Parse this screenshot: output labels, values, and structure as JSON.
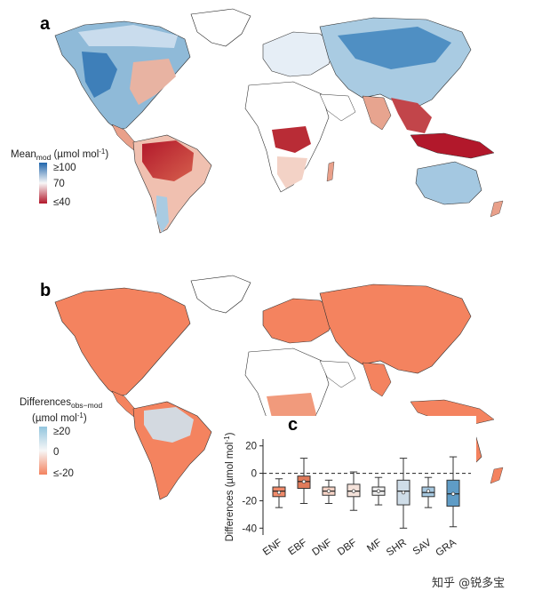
{
  "panel_a": {
    "letter": "a",
    "legend": {
      "title_main": "Mean",
      "title_sub": "mod",
      "title_unit": "(µmol mol",
      "title_exp": "-1",
      "title_close": ")",
      "ticks": [
        "≥100",
        "70",
        "≤40"
      ],
      "colors": [
        "#2166ac",
        "#f7f7f7",
        "#b2182b"
      ]
    }
  },
  "panel_b": {
    "letter": "b",
    "legend": {
      "title_main": "Differences",
      "title_sub": "obs−mod",
      "unit_line": "(µmol mol",
      "unit_exp": "-1",
      "unit_close": ")",
      "ticks": [
        "≥20",
        "0",
        "≤-20"
      ],
      "colors": [
        "#92c5de",
        "#f7f7f7",
        "#f4835f"
      ]
    }
  },
  "watermark": "知乎 @锐多宝",
  "chart_data": {
    "type": "boxplot",
    "panel": "c",
    "title": "",
    "ylabel": "Differences (µmol mol",
    "ylabel_exp": "-1",
    "ylabel_close": ")",
    "ylim": [
      -45,
      25
    ],
    "yticks": [
      20,
      0,
      -20,
      -40
    ],
    "reference_line": 0,
    "categories": [
      "ENF",
      "EBF",
      "DNF",
      "DBF",
      "MF",
      "SHR",
      "SAV",
      "GRA"
    ],
    "colors": [
      "#f08a6a",
      "#e07a5a",
      "#f6d3c6",
      "#f4e2da",
      "#eeeeee",
      "#cfdde8",
      "#a6c8e0",
      "#5f9cc6"
    ],
    "boxes": [
      {
        "name": "ENF",
        "whisker_low": -25,
        "q1": -17,
        "median": -13,
        "q3": -10,
        "whisker_high": -4,
        "mean": -14
      },
      {
        "name": "EBF",
        "whisker_low": -22,
        "q1": -11,
        "median": -6,
        "q3": -2,
        "whisker_high": 11,
        "mean": -6
      },
      {
        "name": "DNF",
        "whisker_low": -22,
        "q1": -16,
        "median": -13,
        "q3": -10,
        "whisker_high": -5,
        "mean": -13
      },
      {
        "name": "DBF",
        "whisker_low": -27,
        "q1": -17,
        "median": -13,
        "q3": -8,
        "whisker_high": 1,
        "mean": -13
      },
      {
        "name": "MF",
        "whisker_low": -23,
        "q1": -16,
        "median": -13,
        "q3": -10,
        "whisker_high": -3,
        "mean": -13
      },
      {
        "name": "SHR",
        "whisker_low": -40,
        "q1": -23,
        "median": -13,
        "q3": -5,
        "whisker_high": 11,
        "mean": -14
      },
      {
        "name": "SAV",
        "whisker_low": -25,
        "q1": -17,
        "median": -14,
        "q3": -10,
        "whisker_high": -3,
        "mean": -13
      },
      {
        "name": "GRA",
        "whisker_low": -39,
        "q1": -24,
        "median": -15,
        "q3": -5,
        "whisker_high": 12,
        "mean": -15
      }
    ]
  }
}
